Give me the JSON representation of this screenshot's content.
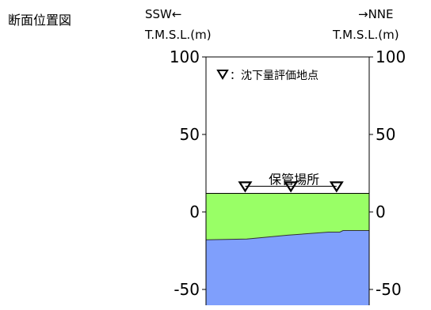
{
  "title": "断面位置図",
  "left_direction": "SSW←",
  "right_direction": "→NNE",
  "left_unit": "T.M.S.L.(m)",
  "right_unit": "T.M.S.L.(m)",
  "left_ticks": [
    "100",
    "50",
    "0",
    "-50"
  ],
  "right_ticks": [
    "100",
    "50",
    "0",
    "-50"
  ],
  "legend_text": "：沈下量評価地点",
  "area_label": "保管場所",
  "colors": {
    "upper_layer": "#99ff66",
    "lower_layer": "#7f9ffc",
    "outline": "#000000",
    "background": "#ffffff"
  },
  "chart_data": {
    "type": "area",
    "ylabel": "T.M.S.L.(m)",
    "ylim": [
      -60,
      100
    ],
    "y_ticks": [
      100,
      50,
      0,
      -50
    ],
    "layers": [
      {
        "name": "upper",
        "top_elevation": 12,
        "bottom_x": [
          0,
          0.25,
          0.5,
          0.75,
          0.82,
          0.84,
          1.0
        ],
        "bottom_y": [
          -18,
          -17.5,
          -15,
          -13,
          -13,
          -12,
          -12
        ]
      },
      {
        "name": "lower",
        "top_x": [
          0,
          0.25,
          0.5,
          0.75,
          0.82,
          0.84,
          1.0
        ],
        "top_y": [
          -18,
          -17.5,
          -15,
          -13,
          -13,
          -12,
          -12
        ],
        "bottom_elevation": -60
      }
    ],
    "evaluation_points": [
      {
        "x": 0.24,
        "y": 12
      },
      {
        "x": 0.52,
        "y": 12
      },
      {
        "x": 0.8,
        "y": 12
      }
    ],
    "area_label_span": [
      0.24,
      0.8
    ],
    "area_label_elevation": 12
  }
}
